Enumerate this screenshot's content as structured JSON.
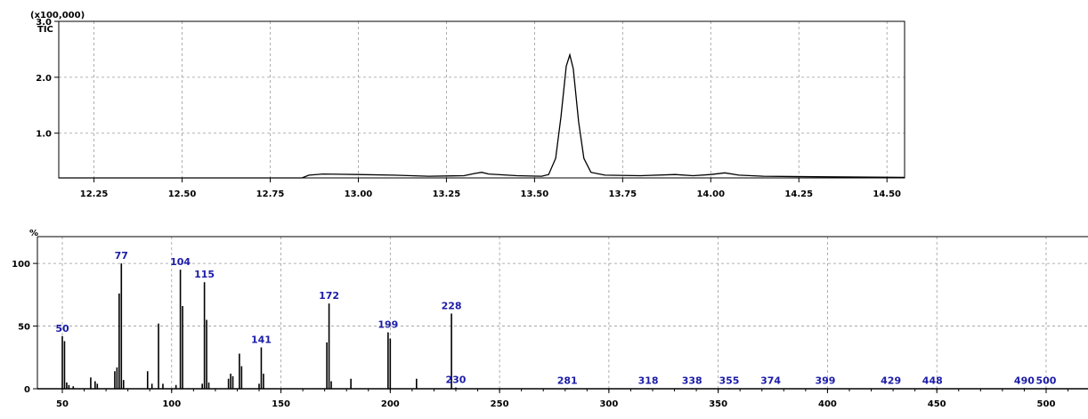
{
  "chart_data": [
    {
      "type": "line",
      "title": "TIC",
      "y_scale_note": "(x100,000)",
      "xlim": [
        12.15,
        14.55
      ],
      "ylim": [
        0.2,
        3.0
      ],
      "x_ticks": [
        "12.25",
        "12.50",
        "12.75",
        "13.00",
        "13.25",
        "13.50",
        "13.75",
        "14.00",
        "14.25",
        "14.50"
      ],
      "y_ticks": [
        "1.0",
        "2.0",
        "3.0"
      ],
      "grid": true,
      "series": [
        {
          "points": [
            [
              12.15,
              0.2
            ],
            [
              12.84,
              0.2
            ],
            [
              12.86,
              0.25
            ],
            [
              12.9,
              0.27
            ],
            [
              13.0,
              0.26
            ],
            [
              13.1,
              0.25
            ],
            [
              13.2,
              0.23
            ],
            [
              13.3,
              0.24
            ],
            [
              13.33,
              0.28
            ],
            [
              13.35,
              0.3
            ],
            [
              13.37,
              0.27
            ],
            [
              13.45,
              0.24
            ],
            [
              13.52,
              0.23
            ],
            [
              13.54,
              0.26
            ],
            [
              13.56,
              0.55
            ],
            [
              13.575,
              1.3
            ],
            [
              13.59,
              2.2
            ],
            [
              13.6,
              2.4
            ],
            [
              13.61,
              2.15
            ],
            [
              13.625,
              1.2
            ],
            [
              13.64,
              0.55
            ],
            [
              13.66,
              0.3
            ],
            [
              13.7,
              0.25
            ],
            [
              13.8,
              0.24
            ],
            [
              13.9,
              0.26
            ],
            [
              13.95,
              0.24
            ],
            [
              14.0,
              0.26
            ],
            [
              14.04,
              0.29
            ],
            [
              14.08,
              0.25
            ],
            [
              14.15,
              0.23
            ],
            [
              14.3,
              0.22
            ],
            [
              14.55,
              0.21
            ]
          ]
        }
      ]
    },
    {
      "type": "bar",
      "title": "%",
      "xlim": [
        42,
        510
      ],
      "ylim": [
        0,
        110
      ],
      "x_ticks": [
        "50",
        "100",
        "150",
        "200",
        "250",
        "300",
        "350",
        "400",
        "450",
        "500"
      ],
      "y_ticks": [
        "0",
        "50",
        "100"
      ],
      "grid": true,
      "peaks": [
        {
          "mz": 50,
          "intensity": 42
        },
        {
          "mz": 51,
          "intensity": 38
        },
        {
          "mz": 52,
          "intensity": 5
        },
        {
          "mz": 53,
          "intensity": 3
        },
        {
          "mz": 55,
          "intensity": 2
        },
        {
          "mz": 63,
          "intensity": 9
        },
        {
          "mz": 65,
          "intensity": 6
        },
        {
          "mz": 66,
          "intensity": 4
        },
        {
          "mz": 74,
          "intensity": 14
        },
        {
          "mz": 75,
          "intensity": 17
        },
        {
          "mz": 76,
          "intensity": 76
        },
        {
          "mz": 77,
          "intensity": 100
        },
        {
          "mz": 78,
          "intensity": 7
        },
        {
          "mz": 89,
          "intensity": 14
        },
        {
          "mz": 91,
          "intensity": 4
        },
        {
          "mz": 94,
          "intensity": 52
        },
        {
          "mz": 96,
          "intensity": 4
        },
        {
          "mz": 102,
          "intensity": 3
        },
        {
          "mz": 104,
          "intensity": 95
        },
        {
          "mz": 105,
          "intensity": 66
        },
        {
          "mz": 114,
          "intensity": 4
        },
        {
          "mz": 115,
          "intensity": 85
        },
        {
          "mz": 116,
          "intensity": 55
        },
        {
          "mz": 117,
          "intensity": 5
        },
        {
          "mz": 126,
          "intensity": 8
        },
        {
          "mz": 127,
          "intensity": 12
        },
        {
          "mz": 128,
          "intensity": 10
        },
        {
          "mz": 131,
          "intensity": 28
        },
        {
          "mz": 132,
          "intensity": 18
        },
        {
          "mz": 140,
          "intensity": 4
        },
        {
          "mz": 141,
          "intensity": 33
        },
        {
          "mz": 142,
          "intensity": 12
        },
        {
          "mz": 171,
          "intensity": 37
        },
        {
          "mz": 172,
          "intensity": 68
        },
        {
          "mz": 173,
          "intensity": 6
        },
        {
          "mz": 182,
          "intensity": 8
        },
        {
          "mz": 199,
          "intensity": 45
        },
        {
          "mz": 200,
          "intensity": 40
        },
        {
          "mz": 212,
          "intensity": 8
        },
        {
          "mz": 228,
          "intensity": 60
        },
        {
          "mz": 230,
          "intensity": 1
        },
        {
          "mz": 281,
          "intensity": 0.5
        },
        {
          "mz": 318,
          "intensity": 0.5
        },
        {
          "mz": 338,
          "intensity": 0.5
        },
        {
          "mz": 355,
          "intensity": 0.5
        },
        {
          "mz": 374,
          "intensity": 0.5
        },
        {
          "mz": 399,
          "intensity": 0.5
        },
        {
          "mz": 429,
          "intensity": 0.5
        },
        {
          "mz": 448,
          "intensity": 0.5
        },
        {
          "mz": 490,
          "intensity": 0.5
        },
        {
          "mz": 500,
          "intensity": 0.5
        }
      ],
      "labels": [
        {
          "mz": 50,
          "text": "50"
        },
        {
          "mz": 77,
          "text": "77"
        },
        {
          "mz": 104,
          "text": "104"
        },
        {
          "mz": 115,
          "text": "115"
        },
        {
          "mz": 141,
          "text": "141"
        },
        {
          "mz": 172,
          "text": "172"
        },
        {
          "mz": 199,
          "text": "199"
        },
        {
          "mz": 228,
          "text": "228"
        },
        {
          "mz": 230,
          "text": "230"
        },
        {
          "mz": 281,
          "text": "281"
        },
        {
          "mz": 318,
          "text": "318"
        },
        {
          "mz": 338,
          "text": "338"
        },
        {
          "mz": 355,
          "text": "355"
        },
        {
          "mz": 374,
          "text": "374"
        },
        {
          "mz": 399,
          "text": "399"
        },
        {
          "mz": 429,
          "text": "429"
        },
        {
          "mz": 448,
          "text": "448"
        },
        {
          "mz": 490,
          "text": "490"
        },
        {
          "mz": 500,
          "text": "500"
        }
      ]
    }
  ],
  "colors": {
    "axis": "#000000",
    "grid": "#9a9a9a",
    "peak_label": "#1c1ca8"
  }
}
